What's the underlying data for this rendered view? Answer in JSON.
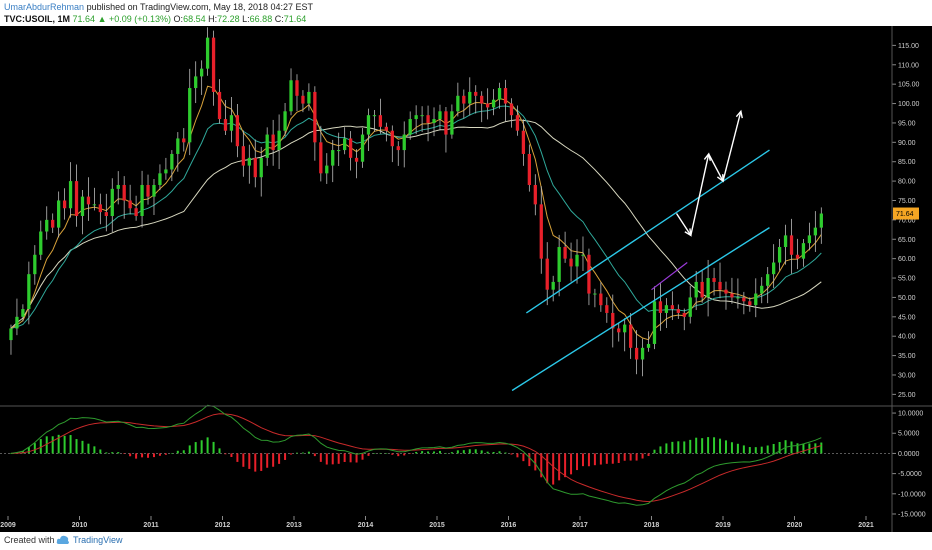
{
  "header": {
    "author": "UmarAbdurRehman",
    "published": "published on TradingView.com, May 18, 2018 04:27 EST",
    "symbol": "TVC:USOIL, 1M",
    "last": "71.64",
    "change": "▲ +0.09 (+0.13%)",
    "open_label": "O:",
    "open": "68.54",
    "high_label": "H:",
    "high": "72.28",
    "low_label": "L:",
    "low": "66.88",
    "close_label": "C:",
    "close": "71.64"
  },
  "footer": {
    "created": "Created with",
    "brand": "TradingView"
  },
  "colors": {
    "up": "#2ecc2e",
    "down": "#e8202a",
    "ema_fast": "#d8a23a",
    "ema_mid": "#2fa89a",
    "sma_slow": "#d8d8c0",
    "channel": "#2bc8e8",
    "macd": "#2e9a2e",
    "signal": "#c82a2a",
    "price_badge": "#f5a623",
    "arrow": "#ffffff",
    "purple": "#9a3ad8"
  },
  "chart_data": [
    {
      "type": "candlestick",
      "title": "",
      "ylim": [
        22,
        120
      ],
      "yticks": [
        "115.00",
        "110.00",
        "105.00",
        "100.00",
        "95.00",
        "90.00",
        "85.00",
        "80.00",
        "75.00",
        "70.00",
        "65.00",
        "60.00",
        "55.00",
        "50.00",
        "45.00",
        "40.00",
        "35.00",
        "30.00",
        "25.00"
      ],
      "ytick_values": [
        115,
        110,
        105,
        100,
        95,
        90,
        85,
        80,
        75,
        70,
        65,
        60,
        55,
        50,
        45,
        40,
        35,
        30,
        25
      ],
      "current_price_label": "71.64",
      "current_price": 71.64,
      "x_labels": [
        "2009",
        "2010",
        "2011",
        "2012",
        "2013",
        "2014",
        "2015",
        "2016",
        "2017",
        "2018",
        "2019",
        "2020",
        "2021"
      ],
      "x_label_years": [
        2009,
        2010,
        2011,
        2012,
        2013,
        2014,
        2015,
        2016,
        2017,
        2018,
        2019,
        2020,
        2021
      ],
      "start_year": 2009.0,
      "close_prices": [
        42,
        45,
        47,
        56,
        61,
        67,
        70,
        68,
        75,
        73,
        80,
        71,
        76,
        74,
        74,
        72,
        71,
        78,
        79,
        75,
        73,
        71,
        79,
        76,
        79,
        82,
        83,
        87,
        91,
        90,
        104,
        107,
        109,
        117,
        103,
        96,
        93,
        97,
        89,
        84,
        86,
        81,
        86,
        92,
        88,
        93,
        98,
        106,
        102,
        100,
        103,
        90,
        82,
        84,
        88,
        88,
        91,
        86,
        85,
        92,
        97,
        97,
        94,
        93,
        89,
        88,
        92,
        96,
        97,
        97,
        95,
        96,
        98,
        92,
        98,
        102,
        100,
        103,
        102,
        100,
        99,
        101,
        104,
        100,
        97,
        93,
        87,
        79,
        74,
        60,
        52,
        54,
        63,
        60,
        58,
        61,
        61,
        51,
        51,
        48,
        46,
        42,
        41,
        43,
        37,
        34,
        37,
        38,
        49,
        46,
        48,
        47,
        46,
        45,
        50,
        54,
        50,
        55,
        54,
        52,
        51,
        50,
        50,
        49,
        48,
        51,
        53,
        56,
        59,
        63,
        66,
        61,
        60,
        64,
        66,
        68,
        71.64
      ],
      "series": [
        {
          "name": "EMA 10"
        },
        {
          "name": "EMA 20"
        },
        {
          "name": "SMA 50"
        }
      ],
      "channel": {
        "lower": [
          [
            2016.05,
            26
          ],
          [
            2019.65,
            68
          ]
        ],
        "upper": [
          [
            2016.25,
            46
          ],
          [
            2019.65,
            88
          ]
        ]
      },
      "projection": [
        [
          2018.35,
          71.64
        ],
        [
          2018.55,
          66
        ],
        [
          2018.8,
          87
        ],
        [
          2019.0,
          80
        ],
        [
          2019.25,
          98
        ]
      ]
    },
    {
      "type": "macd",
      "ylim": [
        -15.5,
        11.5
      ],
      "yticks": [
        "10.0000",
        "5.0000",
        "0.0000",
        "-5.0000",
        "-10.0000",
        "-15.0000"
      ],
      "ytick_values": [
        10,
        5,
        0,
        -5,
        -10,
        -15
      ]
    }
  ]
}
